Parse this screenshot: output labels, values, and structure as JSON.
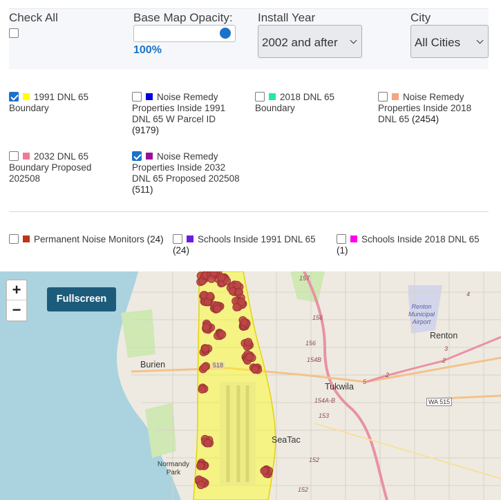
{
  "controls": {
    "check_all_label": "Check All",
    "opacity_label": "Base Map Opacity:",
    "opacity_value": "100%",
    "opacity_fraction": 1.0,
    "install_year_label": "Install Year",
    "install_year_selected": "2002 and after",
    "city_label": "City",
    "city_selected": "All Cities"
  },
  "layers": [
    {
      "label": "1991 DNL 65 Boundary",
      "count": "",
      "checked": true,
      "color": "#ffff00"
    },
    {
      "label": "Noise Remedy Properties Inside 1991 DNL 65 W Parcel ID",
      "count": "(9179)",
      "checked": false,
      "color": "#0000dd"
    },
    {
      "label": "2018 DNL 65 Boundary",
      "count": "",
      "checked": false,
      "color": "#22e8b0"
    },
    {
      "label": "Noise Remedy Properties Inside 2018 DNL 65",
      "count": "(2454)",
      "checked": false,
      "color": "#f4a582"
    },
    {
      "label": "2032 DNL 65 Boundary Proposed 202508",
      "count": "",
      "checked": false,
      "color": "#ee7b92"
    },
    {
      "label": "Noise Remedy Properties Inside 2032 DNL 65 Proposed 202508",
      "count": "(511)",
      "checked": true,
      "color": "#9b0d9b"
    },
    {
      "label": "Permanent Noise Monitors",
      "count": "(24)",
      "checked": false,
      "color": "#c0341c"
    },
    {
      "label": "Schools Inside 1991 DNL 65",
      "count": "(24)",
      "checked": false,
      "color": "#6a1de0"
    },
    {
      "label": "Schools Inside 2018 DNL 65",
      "count": "(1)",
      "checked": false,
      "color": "#ff00ee"
    }
  ],
  "map": {
    "zoom_in": "+",
    "zoom_out": "−",
    "fullscreen_label": "Fullscreen",
    "places": {
      "burien": "Burien",
      "tukwila": "Tukwila",
      "renton": "Renton",
      "seatac": "SeaTac",
      "normandy_park": "Normandy Park",
      "renton_airport": "Renton Municipal Airport"
    },
    "shields": {
      "s518": "518",
      "wa515": "WA 515",
      "r157": "157",
      "r156a": "156",
      "r156b": "156",
      "r154b": "154B",
      "r154ab": "154A-B",
      "r153": "153",
      "r152a": "152",
      "r152b": "152",
      "r2a": "2",
      "r2b": "2",
      "r3": "3",
      "r4": "4",
      "r5": "5"
    }
  }
}
